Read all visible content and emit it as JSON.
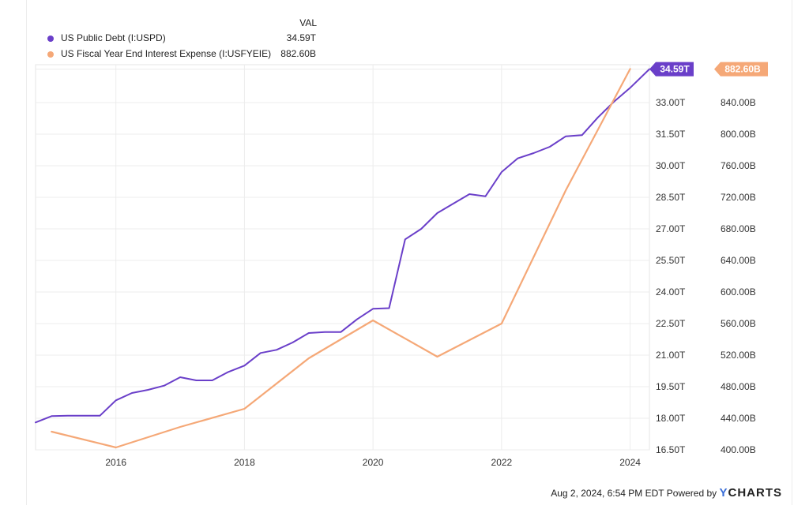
{
  "legend": {
    "header": "VAL",
    "items": [
      {
        "name": "US Public Debt (I:USPD)",
        "value": "34.59T",
        "color": "#6a3fc9"
      },
      {
        "name": "US Fiscal Year End Interest Expense (I:USFYEIE)",
        "value": "882.60B",
        "color": "#f5a877"
      }
    ]
  },
  "footer": {
    "timestamp": "Aug 2, 2024, 6:54 PM EDT",
    "powered_by": "Powered by",
    "brand_mark": "Y",
    "brand_name": "CHARTS"
  },
  "chart_data": {
    "type": "line",
    "x_ticks": [
      "2016",
      "2018",
      "2020",
      "2022",
      "2024"
    ],
    "x_tick_values": [
      2016,
      2018,
      2020,
      2022,
      2024
    ],
    "xlim": [
      2014.75,
      2024.3
    ],
    "grid": true,
    "left_axis": {
      "ticks": [
        "16.50T",
        "18.00T",
        "19.50T",
        "21.00T",
        "22.50T",
        "24.00T",
        "25.50T",
        "27.00T",
        "28.50T",
        "30.00T",
        "31.50T",
        "33.00T"
      ],
      "tick_values": [
        16.5,
        18.0,
        19.5,
        21.0,
        22.5,
        24.0,
        25.5,
        27.0,
        28.5,
        30.0,
        31.5,
        33.0
      ],
      "ylim": [
        16.5,
        34.8
      ],
      "unit": "T"
    },
    "right_axis": {
      "ticks": [
        "400.00B",
        "440.00B",
        "480.00B",
        "520.00B",
        "560.00B",
        "600.00B",
        "640.00B",
        "680.00B",
        "720.00B",
        "760.00B",
        "800.00B",
        "840.00B"
      ],
      "tick_values": [
        400,
        440,
        480,
        520,
        560,
        600,
        640,
        680,
        720,
        760,
        800,
        840
      ],
      "ylim": [
        400,
        888
      ],
      "unit": "B"
    },
    "series": [
      {
        "name": "US Public Debt (I:USPD)",
        "axis": "left",
        "color": "#6a3fc9",
        "last_label": "34.59T",
        "x": [
          2014.75,
          2015.0,
          2015.25,
          2015.5,
          2015.75,
          2016.0,
          2016.25,
          2016.5,
          2016.75,
          2017.0,
          2017.25,
          2017.5,
          2017.75,
          2018.0,
          2018.25,
          2018.5,
          2018.75,
          2019.0,
          2019.25,
          2019.5,
          2019.75,
          2020.0,
          2020.25,
          2020.5,
          2020.75,
          2021.0,
          2021.25,
          2021.5,
          2021.75,
          2022.0,
          2022.25,
          2022.5,
          2022.75,
          2023.0,
          2023.25,
          2023.5,
          2023.75,
          2024.0,
          2024.3
        ],
        "values": [
          17.8,
          18.1,
          18.12,
          18.12,
          18.12,
          18.85,
          19.2,
          19.35,
          19.55,
          19.95,
          19.8,
          19.8,
          20.2,
          20.5,
          21.1,
          21.25,
          21.6,
          22.05,
          22.1,
          22.1,
          22.7,
          23.2,
          23.23,
          26.5,
          27.0,
          27.75,
          28.2,
          28.65,
          28.55,
          29.7,
          30.35,
          30.6,
          30.9,
          31.4,
          31.45,
          32.3,
          33.05,
          33.7,
          34.59
        ]
      },
      {
        "name": "US Fiscal Year End Interest Expense (I:USFYEIE)",
        "axis": "right",
        "color": "#f5a877",
        "last_label": "882.60B",
        "x": [
          2015.0,
          2016.0,
          2017.0,
          2018.0,
          2019.0,
          2020.0,
          2021.0,
          2022.0,
          2023.0,
          2024.0
        ],
        "values": [
          423,
          403,
          429,
          452,
          516,
          564,
          518,
          560,
          729,
          882.6
        ]
      }
    ]
  }
}
